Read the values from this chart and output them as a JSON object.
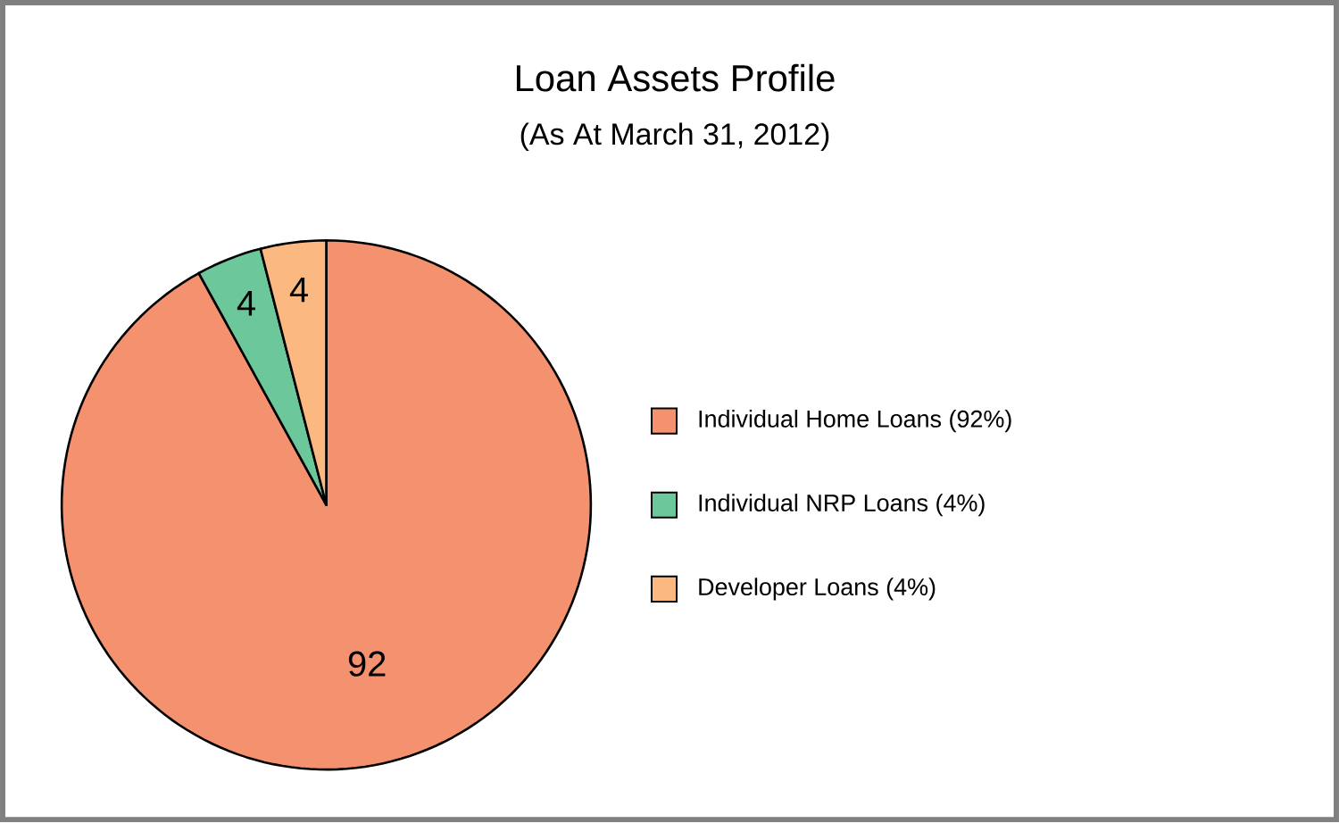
{
  "chart_data": {
    "type": "pie",
    "title": "Loan Assets Profile",
    "subtitle": "(As At March 31, 2012)",
    "categories": [
      "Individual Home Loans (92%)",
      "Individual NRP Loans (4%)",
      "Developer Loans (4%)"
    ],
    "values": [
      92,
      4,
      4
    ],
    "colors": [
      "#f4916f",
      "#6cc79b",
      "#fbb880"
    ],
    "data_labels": true,
    "legend": "right"
  }
}
